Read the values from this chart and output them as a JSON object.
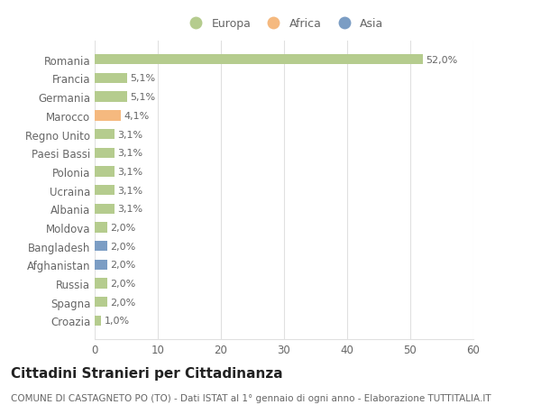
{
  "categories": [
    "Romania",
    "Francia",
    "Germania",
    "Marocco",
    "Regno Unito",
    "Paesi Bassi",
    "Polonia",
    "Ucraina",
    "Albania",
    "Moldova",
    "Bangladesh",
    "Afghanistan",
    "Russia",
    "Spagna",
    "Croazia"
  ],
  "values": [
    52.0,
    5.1,
    5.1,
    4.1,
    3.1,
    3.1,
    3.1,
    3.1,
    3.1,
    2.0,
    2.0,
    2.0,
    2.0,
    2.0,
    1.0
  ],
  "labels": [
    "52,0%",
    "5,1%",
    "5,1%",
    "4,1%",
    "3,1%",
    "3,1%",
    "3,1%",
    "3,1%",
    "3,1%",
    "2,0%",
    "2,0%",
    "2,0%",
    "2,0%",
    "2,0%",
    "1,0%"
  ],
  "colors": [
    "#b5cc8e",
    "#b5cc8e",
    "#b5cc8e",
    "#f5b97f",
    "#b5cc8e",
    "#b5cc8e",
    "#b5cc8e",
    "#b5cc8e",
    "#b5cc8e",
    "#b5cc8e",
    "#7b9dc4",
    "#7b9dc4",
    "#b5cc8e",
    "#b5cc8e",
    "#b5cc8e"
  ],
  "continent_colors": {
    "Europa": "#b5cc8e",
    "Africa": "#f5b97f",
    "Asia": "#7b9dc4"
  },
  "legend_labels": [
    "Europa",
    "Africa",
    "Asia"
  ],
  "title": "Cittadini Stranieri per Cittadinanza",
  "subtitle": "COMUNE DI CASTAGNETO PO (TO) - Dati ISTAT al 1° gennaio di ogni anno - Elaborazione TUTTITALIA.IT",
  "xlim": [
    0,
    60
  ],
  "xticks": [
    0,
    10,
    20,
    30,
    40,
    50,
    60
  ],
  "bg_color": "#ffffff",
  "grid_color": "#e0e0e0",
  "bar_height": 0.55,
  "label_fontsize": 8.0,
  "title_fontsize": 11,
  "subtitle_fontsize": 7.5,
  "tick_fontsize": 8.5,
  "legend_fontsize": 9
}
